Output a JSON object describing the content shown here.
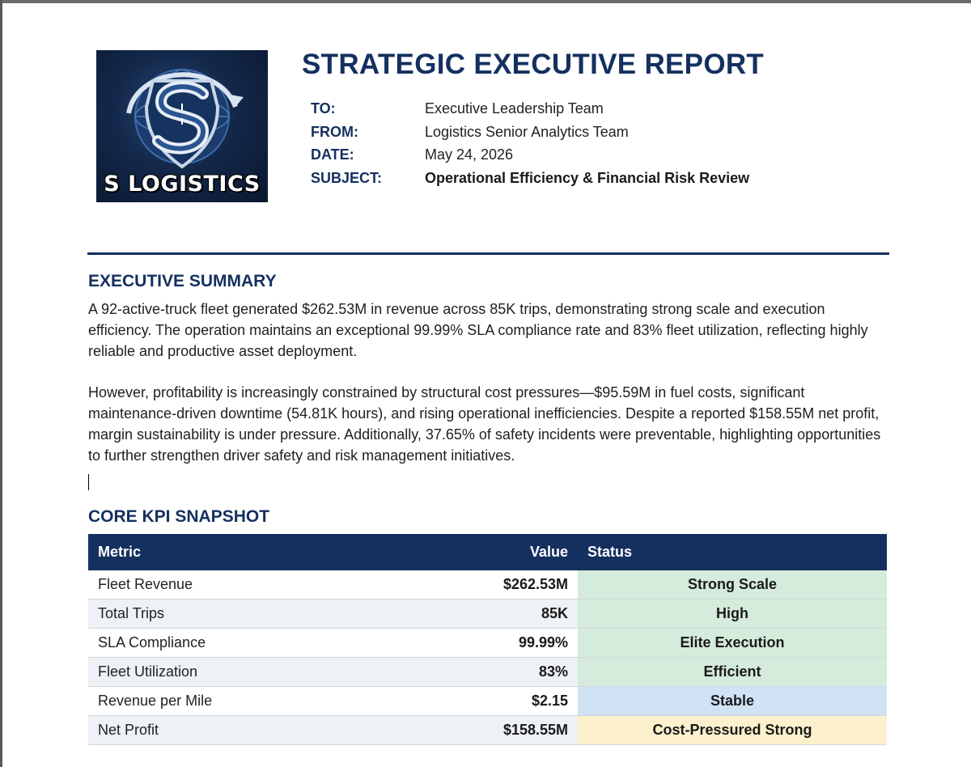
{
  "logo": {
    "text": "S LOGISTICS",
    "icon": "s-logistics-shield-logo"
  },
  "report": {
    "title": "STRATEGIC EXECUTIVE REPORT"
  },
  "memo": [
    {
      "label": "TO:",
      "value": "Executive Leadership Team",
      "bold": false
    },
    {
      "label": "FROM:",
      "value": "Logistics Senior Analytics Team",
      "bold": false
    },
    {
      "label": "DATE:",
      "value": "May 24, 2026",
      "bold": false
    },
    {
      "label": "SUBJECT:",
      "value": "Operational Efficiency & Financial Risk Review",
      "bold": true
    }
  ],
  "summary": {
    "heading": "EXECUTIVE SUMMARY",
    "paragraphs": [
      "A 92-active-truck fleet generated $262.53M in revenue across 85K trips, demonstrating strong scale and execution efficiency. The operation maintains an exceptional 99.99% SLA compliance rate and 83% fleet utilization, reflecting highly reliable and productive asset deployment.",
      "However, profitability is increasingly constrained by structural cost pressures—$95.59M in fuel costs, significant maintenance-driven downtime (54.81K hours), and rising operational inefficiencies. Despite a reported $158.55M net profit, margin sustainability is under pressure. Additionally, 37.65% of safety incidents were preventable, highlighting opportunities to further strengthen driver safety and risk management initiatives."
    ]
  },
  "kpi": {
    "heading": "CORE KPI SNAPSHOT",
    "columns": {
      "metric": "Metric",
      "value": "Value",
      "status": "Status"
    },
    "rows": [
      {
        "metric": "Fleet Revenue",
        "value": "$262.53M",
        "status": "Strong Scale",
        "tone": "green"
      },
      {
        "metric": "Total Trips",
        "value": "85K",
        "status": "High",
        "tone": "green"
      },
      {
        "metric": "SLA Compliance",
        "value": "99.99%",
        "status": "Elite Execution",
        "tone": "green"
      },
      {
        "metric": "Fleet Utilization",
        "value": "83%",
        "status": "Efficient",
        "tone": "green"
      },
      {
        "metric": "Revenue per Mile",
        "value": "$2.15",
        "status": "Stable",
        "tone": "blue"
      },
      {
        "metric": "Net Profit",
        "value": "$158.55M",
        "status": "Cost-Pressured Strong",
        "tone": "yellow"
      }
    ]
  },
  "colors": {
    "brand_navy": "#14305f",
    "status_green": "#d5ebdb",
    "status_blue": "#cfe3f5",
    "status_yellow": "#fdf0cc"
  }
}
